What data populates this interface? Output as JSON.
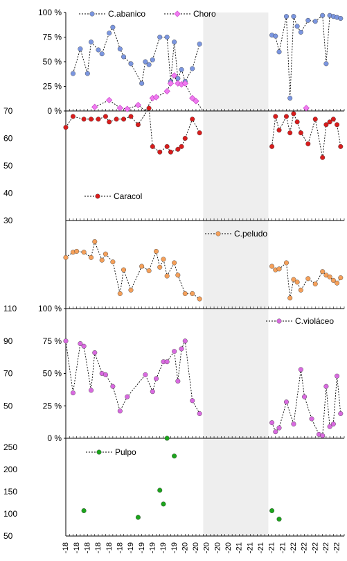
{
  "chart_data": [
    {
      "type": "line",
      "panel": "C.abanico / Choro",
      "y_axis": "left-percent",
      "ylim": [
        0,
        100
      ],
      "yticks": [
        "0 %",
        "25 %",
        "50 %",
        "75 %",
        "100 %"
      ],
      "ytick_values": [
        0,
        25,
        50,
        75,
        100
      ],
      "legend_position": "top",
      "series": [
        {
          "name": "C.abanico",
          "color": "#7b96e0",
          "x": [
            2,
            4,
            6,
            7,
            9,
            10,
            12,
            13,
            15,
            16,
            18,
            21,
            22,
            23,
            24,
            26,
            28,
            29,
            30,
            31,
            32,
            33,
            35,
            37,
            57,
            58,
            59,
            61,
            62,
            63,
            64,
            65,
            67,
            69,
            71,
            72,
            73,
            74,
            75,
            76
          ],
          "values": [
            38,
            63,
            38,
            70,
            62,
            58,
            79,
            85,
            63,
            55,
            48,
            28,
            50,
            47,
            52,
            75,
            75,
            30,
            70,
            33,
            42,
            30,
            43,
            68,
            77,
            76,
            60,
            96,
            13,
            96,
            86,
            80,
            92,
            91,
            97,
            48,
            97,
            96,
            95,
            94
          ]
        },
        {
          "name": "Choro",
          "color": "#f07af0",
          "x": [
            8,
            12,
            15,
            17,
            20,
            22,
            24,
            25,
            28,
            29,
            30,
            31,
            32,
            33,
            35,
            36,
            38,
            40,
            42,
            44,
            46,
            48,
            50,
            52,
            54,
            56,
            58,
            60,
            62,
            64,
            66,
            66.5
          ],
          "values": [
            4,
            11,
            3,
            2,
            6,
            0,
            13,
            14,
            20,
            28,
            36,
            28,
            27,
            28,
            13,
            10,
            0,
            0,
            0,
            0,
            0,
            0,
            0,
            0,
            0,
            0,
            0,
            0,
            0,
            0,
            0,
            3
          ]
        }
      ]
    },
    {
      "type": "line",
      "panel": "Caracol",
      "y_axis": "left",
      "ylim": [
        30,
        70
      ],
      "yticks": [
        "30",
        "40",
        "50",
        "60",
        "70"
      ],
      "ytick_values": [
        30,
        40,
        50,
        60,
        70
      ],
      "legend_position": "bottom-left",
      "series": [
        {
          "name": "Caracol",
          "color": "#d81c1c",
          "x": [
            0,
            2,
            5,
            7,
            9,
            11,
            12,
            14,
            16,
            18,
            20,
            23,
            24,
            26,
            28,
            29,
            31,
            32,
            33,
            35,
            37,
            57,
            58,
            59,
            61,
            62,
            63,
            64,
            65,
            67,
            69,
            71,
            72,
            73,
            74,
            75,
            76
          ],
          "values": [
            64,
            68,
            67,
            67,
            67,
            68,
            66,
            67,
            67,
            68,
            65,
            71,
            57,
            55,
            57,
            55,
            56,
            57,
            60,
            67,
            62,
            57,
            68,
            63,
            68,
            62,
            69,
            66,
            62,
            58,
            67,
            53,
            65,
            66,
            67,
            65,
            57
          ]
        }
      ]
    },
    {
      "type": "line",
      "panel": "C.peludo",
      "y_axis": "none",
      "ylim": [
        0,
        100
      ],
      "yticks": [],
      "ytick_values": [],
      "legend_position": "top-right",
      "series": [
        {
          "name": "C.peludo",
          "color": "#f5a05a",
          "x": [
            0,
            2,
            3,
            5,
            7,
            8,
            10,
            11,
            13,
            15,
            16,
            18,
            21,
            23,
            25,
            26,
            27,
            28,
            30,
            31,
            33,
            35,
            37,
            57,
            58,
            59,
            61,
            62,
            63,
            64,
            65,
            67,
            69,
            71,
            72,
            73,
            74,
            75,
            76
          ],
          "values": [
            58,
            64,
            65,
            64,
            58,
            76,
            55,
            62,
            53,
            17,
            44,
            21,
            48,
            43,
            65,
            47,
            56,
            37,
            52,
            38,
            17,
            17,
            11,
            48,
            44,
            45,
            52,
            12,
            33,
            30,
            21,
            34,
            28,
            42,
            38,
            36,
            32,
            29,
            35
          ]
        }
      ]
    },
    {
      "type": "line",
      "panel": "C.violáceo",
      "y_axis": "left-percent",
      "ylim": [
        0,
        100
      ],
      "yticks": [
        "0 %",
        "25 %",
        "50 %",
        "75 %",
        "100 %"
      ],
      "ytick_values": [
        0,
        25,
        50,
        75,
        100
      ],
      "legend_position": "top-right",
      "series": [
        {
          "name": "C.violáceo",
          "color": "#d96ae0",
          "x": [
            0,
            2,
            4,
            5,
            7,
            8,
            10,
            11,
            13,
            15,
            17,
            22,
            24,
            25,
            27,
            28,
            30,
            31,
            32,
            33,
            35,
            37,
            57,
            58,
            59,
            61,
            63,
            65,
            66,
            68,
            70,
            71,
            72,
            73,
            74,
            75,
            76
          ],
          "values": [
            75,
            35,
            73,
            71,
            37,
            66,
            50,
            49,
            40,
            21,
            32,
            49,
            36,
            46,
            59,
            59,
            67,
            44,
            69,
            75,
            29,
            19,
            12,
            5,
            8,
            28,
            11,
            53,
            32,
            15,
            3,
            2,
            40,
            9,
            11,
            48,
            19
          ]
        }
      ]
    },
    {
      "type": "scatter",
      "panel": "Pulpo",
      "y_axis": "left",
      "ylim": [
        50,
        270
      ],
      "yticks": [
        "50",
        "100",
        "150",
        "200",
        "250"
      ],
      "ytick_values": [
        50,
        100,
        150,
        200,
        250
      ],
      "legend_position": "top-left",
      "series": [
        {
          "name": "Pulpo",
          "color": "#1ca41c",
          "x": [
            5,
            20,
            26,
            27,
            28,
            30,
            57,
            59
          ],
          "values": [
            107,
            92,
            153,
            122,
            270,
            230,
            107,
            88
          ]
        }
      ]
    },
    {
      "type": "table",
      "panel": "left-axis labels",
      "left_axis_labels": {
        "panel_2": [
          "70",
          "60",
          "50",
          "40",
          "30"
        ],
        "panel_3": [
          "110"
        ],
        "panel_4": [
          "90",
          "70",
          "50"
        ]
      }
    }
  ],
  "x_axis": {
    "labels": [
      "-18",
      "-18",
      "-18",
      "-18",
      "-18",
      "-18",
      "-19",
      "-19",
      "-19",
      "-19",
      "-19",
      "-20",
      "-20",
      "-20",
      "-20",
      "-20",
      "-21",
      "-21",
      "-21",
      "-21",
      "-21",
      "-22",
      "-22",
      "-22",
      "-22",
      "-22"
    ],
    "range": [
      0,
      77
    ]
  },
  "shaded_gap": {
    "from": 38,
    "to": 56
  },
  "colors": {
    "grid": "#d9d9d9",
    "shade": "#eeeeee",
    "axis": "#000000",
    "line": "#000000"
  }
}
